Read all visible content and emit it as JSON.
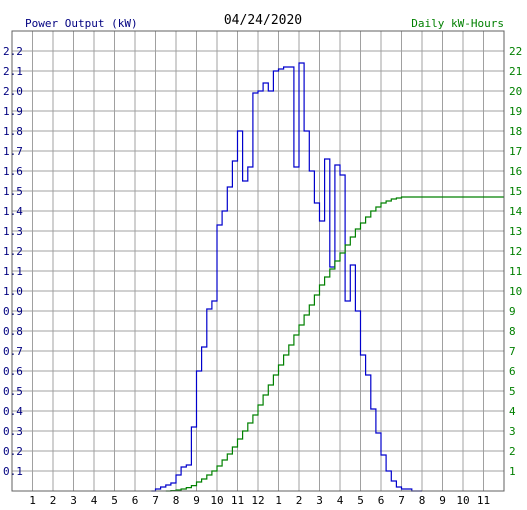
{
  "chart_data": {
    "type": "line",
    "title": "04/24/2020",
    "y_left_label": "Power Output (kW)",
    "y_right_label": "Daily kW-Hours",
    "x_ticks": [
      "1",
      "2",
      "3",
      "4",
      "5",
      "6",
      "7",
      "8",
      "9",
      "10",
      "11",
      "12",
      "1",
      "2",
      "3",
      "4",
      "5",
      "6",
      "7",
      "8",
      "9",
      "10",
      "11"
    ],
    "y_left_ticks": [
      "0.1",
      "0.2",
      "0.3",
      "0.4",
      "0.5",
      "0.6",
      "0.7",
      "0.8",
      "0.9",
      "1.0",
      "1.1",
      "1.2",
      "1.3",
      "1.4",
      "1.5",
      "1.6",
      "1.7",
      "1.8",
      "1.9",
      "2.0",
      "2.1",
      "2.2"
    ],
    "y_right_ticks": [
      "1",
      "2",
      "3",
      "4",
      "5",
      "6",
      "7",
      "8",
      "9",
      "10",
      "11",
      "12",
      "13",
      "14",
      "15",
      "16",
      "17",
      "18",
      "19",
      "20",
      "21",
      "22"
    ],
    "x_range_hours": [
      0,
      24
    ],
    "y_left_range": [
      0,
      2.3
    ],
    "y_right_range": [
      0,
      23
    ],
    "grid": true,
    "colors": {
      "power": "#0000cc",
      "energy": "#008000",
      "left_axis_text": "#000080",
      "right_axis_text": "#008000",
      "grid": "#a0a0a0"
    },
    "series": [
      {
        "name": "Power Output (kW)",
        "axis": "left",
        "step": true,
        "x": [
          6.8,
          7.0,
          7.25,
          7.5,
          7.75,
          8.0,
          8.25,
          8.5,
          8.75,
          9.0,
          9.25,
          9.5,
          9.75,
          10.0,
          10.25,
          10.5,
          10.75,
          11.0,
          11.25,
          11.5,
          11.75,
          12.0,
          12.25,
          12.5,
          12.75,
          13.0,
          13.25,
          13.5,
          13.75,
          14.0,
          14.25,
          14.5,
          14.75,
          15.0,
          15.25,
          15.5,
          15.75,
          16.0,
          16.25,
          16.5,
          16.75,
          17.0,
          17.25,
          17.5,
          17.75,
          18.0,
          18.25,
          18.5,
          18.75,
          19.0,
          19.25,
          19.5,
          19.75,
          20.0
        ],
        "y": [
          0.0,
          0.01,
          0.02,
          0.03,
          0.04,
          0.08,
          0.12,
          0.13,
          0.32,
          0.6,
          0.72,
          0.91,
          0.95,
          1.33,
          1.4,
          1.52,
          1.65,
          1.8,
          1.55,
          1.62,
          1.99,
          2.0,
          2.04,
          2.0,
          2.1,
          2.11,
          2.12,
          2.12,
          1.62,
          2.14,
          1.8,
          1.6,
          1.44,
          1.35,
          1.66,
          1.12,
          1.63,
          1.58,
          0.95,
          1.13,
          0.9,
          0.68,
          0.58,
          0.41,
          0.29,
          0.18,
          0.1,
          0.05,
          0.02,
          0.01,
          0.01,
          0.0,
          0.0,
          0.0
        ]
      },
      {
        "name": "Daily kW-Hours",
        "axis": "right",
        "step": true,
        "x": [
          7.5,
          7.75,
          8.0,
          8.25,
          8.5,
          8.75,
          9.0,
          9.25,
          9.5,
          9.75,
          10.0,
          10.25,
          10.5,
          10.75,
          11.0,
          11.25,
          11.5,
          11.75,
          12.0,
          12.25,
          12.5,
          12.75,
          13.0,
          13.25,
          13.5,
          13.75,
          14.0,
          14.25,
          14.5,
          14.75,
          15.0,
          15.25,
          15.5,
          15.75,
          16.0,
          16.25,
          16.5,
          16.75,
          17.0,
          17.25,
          17.5,
          17.75,
          18.0,
          18.25,
          18.5,
          18.75,
          19.0,
          19.25,
          19.5,
          19.75,
          20.0,
          21.0,
          22.0,
          23.0,
          24.0
        ],
        "y": [
          0.0,
          0.02,
          0.05,
          0.1,
          0.17,
          0.27,
          0.45,
          0.6,
          0.8,
          1.0,
          1.25,
          1.55,
          1.85,
          2.2,
          2.6,
          3.0,
          3.4,
          3.8,
          4.3,
          4.8,
          5.3,
          5.8,
          6.3,
          6.8,
          7.3,
          7.8,
          8.3,
          8.8,
          9.3,
          9.8,
          10.3,
          10.7,
          11.1,
          11.5,
          11.9,
          12.3,
          12.7,
          13.1,
          13.4,
          13.7,
          14.0,
          14.2,
          14.4,
          14.5,
          14.6,
          14.65,
          14.7,
          14.7,
          14.7,
          14.7,
          14.7,
          14.7,
          14.7,
          14.7,
          14.7
        ]
      }
    ]
  }
}
